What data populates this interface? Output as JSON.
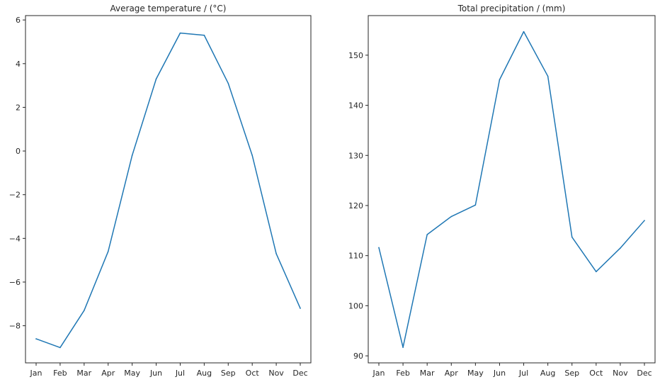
{
  "chart_data": [
    {
      "type": "line",
      "title": "Average temperature / (°C)",
      "xlabel": "",
      "ylabel": "",
      "categories": [
        "Jan",
        "Feb",
        "Mar",
        "Apr",
        "May",
        "Jun",
        "Jul",
        "Aug",
        "Sep",
        "Oct",
        "Nov",
        "Dec"
      ],
      "values": [
        -8.6,
        -9.0,
        -7.3,
        -4.6,
        -0.2,
        3.3,
        5.4,
        5.3,
        3.1,
        -0.2,
        -4.7,
        -7.2
      ],
      "yticks": [
        "−8",
        "−6",
        "−4",
        "−2",
        "0",
        "2",
        "4",
        "6"
      ],
      "ytick_values": [
        -8,
        -6,
        -4,
        -2,
        0,
        2,
        4,
        6
      ],
      "ylim": [
        -9.7,
        6.2
      ],
      "grid": false,
      "color": "#1f77b4"
    },
    {
      "type": "line",
      "title": "Total precipitation / (mm)",
      "xlabel": "",
      "ylabel": "",
      "categories": [
        "Jan",
        "Feb",
        "Mar",
        "Apr",
        "May",
        "Jun",
        "Jul",
        "Aug",
        "Sep",
        "Oct",
        "Nov",
        "Dec"
      ],
      "values": [
        111.6,
        91.7,
        114.2,
        117.8,
        120.1,
        145.1,
        154.7,
        145.8,
        113.7,
        106.8,
        111.5,
        117.0
      ],
      "yticks": [
        "90",
        "100",
        "110",
        "120",
        "130",
        "140",
        "150"
      ],
      "ytick_values": [
        90,
        100,
        110,
        120,
        130,
        140,
        150
      ],
      "ylim": [
        88.6,
        157.9
      ],
      "grid": false,
      "color": "#1f77b4"
    }
  ]
}
